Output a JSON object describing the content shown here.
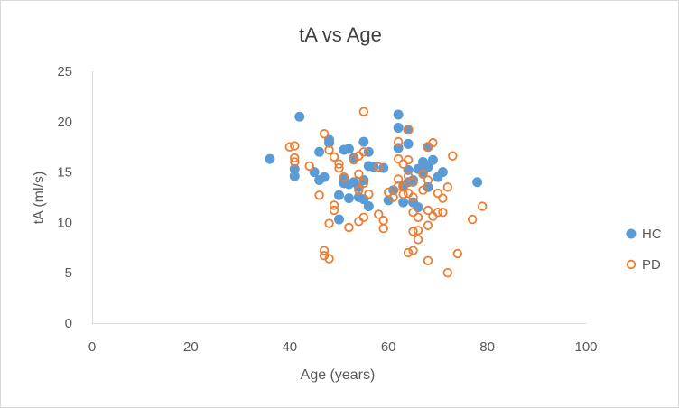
{
  "chart_data": {
    "type": "scatter",
    "title": "tA vs Age",
    "xlabel": "Age (years)",
    "ylabel": "tA (ml/s)",
    "xlim": [
      0,
      100
    ],
    "ylim": [
      0,
      25
    ],
    "xticks": [
      0,
      20,
      40,
      60,
      80,
      100
    ],
    "yticks": [
      0,
      5,
      10,
      15,
      20,
      25
    ],
    "grid": false,
    "legend_position": "right",
    "series": [
      {
        "name": "HC",
        "color": "#5b9bd5",
        "marker": "filled-circle",
        "points": [
          [
            36,
            16.3
          ],
          [
            41,
            15.3
          ],
          [
            41,
            14.6
          ],
          [
            42,
            20.5
          ],
          [
            45,
            15.0
          ],
          [
            46,
            17.0
          ],
          [
            46,
            14.2
          ],
          [
            47,
            14.5
          ],
          [
            48,
            18.2
          ],
          [
            48,
            17.9
          ],
          [
            50,
            10.3
          ],
          [
            50,
            12.7
          ],
          [
            51,
            17.2
          ],
          [
            51,
            14.3
          ],
          [
            51,
            13.9
          ],
          [
            52,
            17.3
          ],
          [
            52,
            13.8
          ],
          [
            52,
            12.4
          ],
          [
            53,
            16.4
          ],
          [
            53,
            14.0
          ],
          [
            54,
            13.5
          ],
          [
            54,
            12.5
          ],
          [
            55,
            18.0
          ],
          [
            55,
            14.2
          ],
          [
            55,
            12.3
          ],
          [
            56,
            17.0
          ],
          [
            56,
            15.6
          ],
          [
            56,
            11.6
          ],
          [
            57,
            15.5
          ],
          [
            59,
            15.4
          ],
          [
            60,
            12.2
          ],
          [
            61,
            13.2
          ],
          [
            62,
            20.7
          ],
          [
            62,
            19.4
          ],
          [
            62,
            17.4
          ],
          [
            63,
            13.6
          ],
          [
            63,
            12.0
          ],
          [
            64,
            19.2
          ],
          [
            64,
            17.8
          ],
          [
            64,
            15.2
          ],
          [
            64,
            14.0
          ],
          [
            65,
            14.2
          ],
          [
            65,
            12.0
          ],
          [
            66,
            15.3
          ],
          [
            66,
            11.5
          ],
          [
            67,
            16.0
          ],
          [
            67,
            15.0
          ],
          [
            68,
            17.5
          ],
          [
            68,
            15.5
          ],
          [
            68,
            13.5
          ],
          [
            69,
            16.2
          ],
          [
            70,
            14.5
          ],
          [
            71,
            15.0
          ],
          [
            78,
            14.0
          ]
        ]
      },
      {
        "name": "PD",
        "color": "#ed7d31",
        "marker": "hollow-circle",
        "points": [
          [
            40,
            17.5
          ],
          [
            41,
            17.6
          ],
          [
            41,
            16.4
          ],
          [
            41,
            16.0
          ],
          [
            44,
            15.6
          ],
          [
            46,
            12.7
          ],
          [
            47,
            18.8
          ],
          [
            47,
            7.2
          ],
          [
            47,
            6.7
          ],
          [
            48,
            17.2
          ],
          [
            48,
            9.9
          ],
          [
            48,
            6.4
          ],
          [
            49,
            16.5
          ],
          [
            49,
            11.7
          ],
          [
            49,
            11.2
          ],
          [
            50,
            15.8
          ],
          [
            50,
            15.4
          ],
          [
            51,
            14.5
          ],
          [
            52,
            9.5
          ],
          [
            53,
            16.2
          ],
          [
            54,
            16.6
          ],
          [
            54,
            14.8
          ],
          [
            54,
            13.2
          ],
          [
            54,
            10.1
          ],
          [
            55,
            21.0
          ],
          [
            55,
            17.0
          ],
          [
            55,
            13.9
          ],
          [
            55,
            10.5
          ],
          [
            56,
            12.8
          ],
          [
            58,
            15.5
          ],
          [
            58,
            10.8
          ],
          [
            59,
            10.2
          ],
          [
            59,
            9.4
          ],
          [
            60,
            13.0
          ],
          [
            61,
            12.5
          ],
          [
            62,
            18.0
          ],
          [
            62,
            16.3
          ],
          [
            62,
            14.3
          ],
          [
            62,
            13.6
          ],
          [
            63,
            15.8
          ],
          [
            63,
            13.5
          ],
          [
            63,
            12.8
          ],
          [
            64,
            19.2
          ],
          [
            64,
            16.2
          ],
          [
            64,
            14.6
          ],
          [
            64,
            12.9
          ],
          [
            64,
            7.0
          ],
          [
            65,
            14.0
          ],
          [
            65,
            12.5
          ],
          [
            65,
            11.0
          ],
          [
            65,
            9.1
          ],
          [
            65,
            7.2
          ],
          [
            66,
            10.5
          ],
          [
            66,
            9.2
          ],
          [
            66,
            8.3
          ],
          [
            67,
            14.8
          ],
          [
            67,
            13.2
          ],
          [
            68,
            17.5
          ],
          [
            68,
            14.2
          ],
          [
            68,
            11.2
          ],
          [
            68,
            9.7
          ],
          [
            68,
            6.2
          ],
          [
            69,
            17.9
          ],
          [
            69,
            10.6
          ],
          [
            70,
            12.9
          ],
          [
            70,
            11.0
          ],
          [
            71,
            12.4
          ],
          [
            71,
            11.0
          ],
          [
            72,
            13.5
          ],
          [
            72,
            5.0
          ],
          [
            73,
            16.6
          ],
          [
            74,
            6.9
          ],
          [
            77,
            10.3
          ],
          [
            79,
            11.6
          ]
        ]
      }
    ]
  }
}
